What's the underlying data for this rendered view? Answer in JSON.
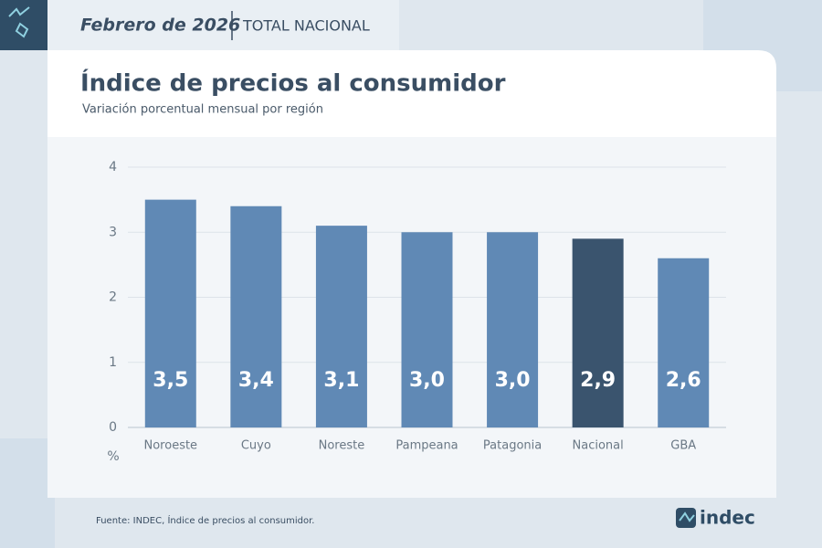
{
  "header": {
    "period": "Febrero de 2026",
    "scope": "TOTAL NACIONAL"
  },
  "chart_data": {
    "type": "bar",
    "title": "Índice de precios al consumidor",
    "subtitle": "Variación porcentual mensual por región",
    "categories": [
      "Noroeste",
      "Cuyo",
      "Noreste",
      "Pampeana",
      "Patagonia",
      "Nacional",
      "GBA"
    ],
    "values": [
      3.5,
      3.4,
      3.1,
      3.0,
      3.0,
      2.9,
      2.6
    ],
    "value_labels": [
      "3,5",
      "3,4",
      "3,1",
      "3,0",
      "3,0",
      "2,9",
      "2,6"
    ],
    "colors": [
      "#6089b5",
      "#6089b5",
      "#6089b5",
      "#6089b5",
      "#6089b5",
      "#3a546e",
      "#6089b5"
    ],
    "ylim": [
      0,
      4
    ],
    "yticks": [
      0,
      1,
      2,
      3,
      4
    ],
    "y_unit": "%",
    "grid": true
  },
  "footer": {
    "source": "Fuente: INDEC, Índice de precios al consumidor.",
    "logo": "indec"
  }
}
